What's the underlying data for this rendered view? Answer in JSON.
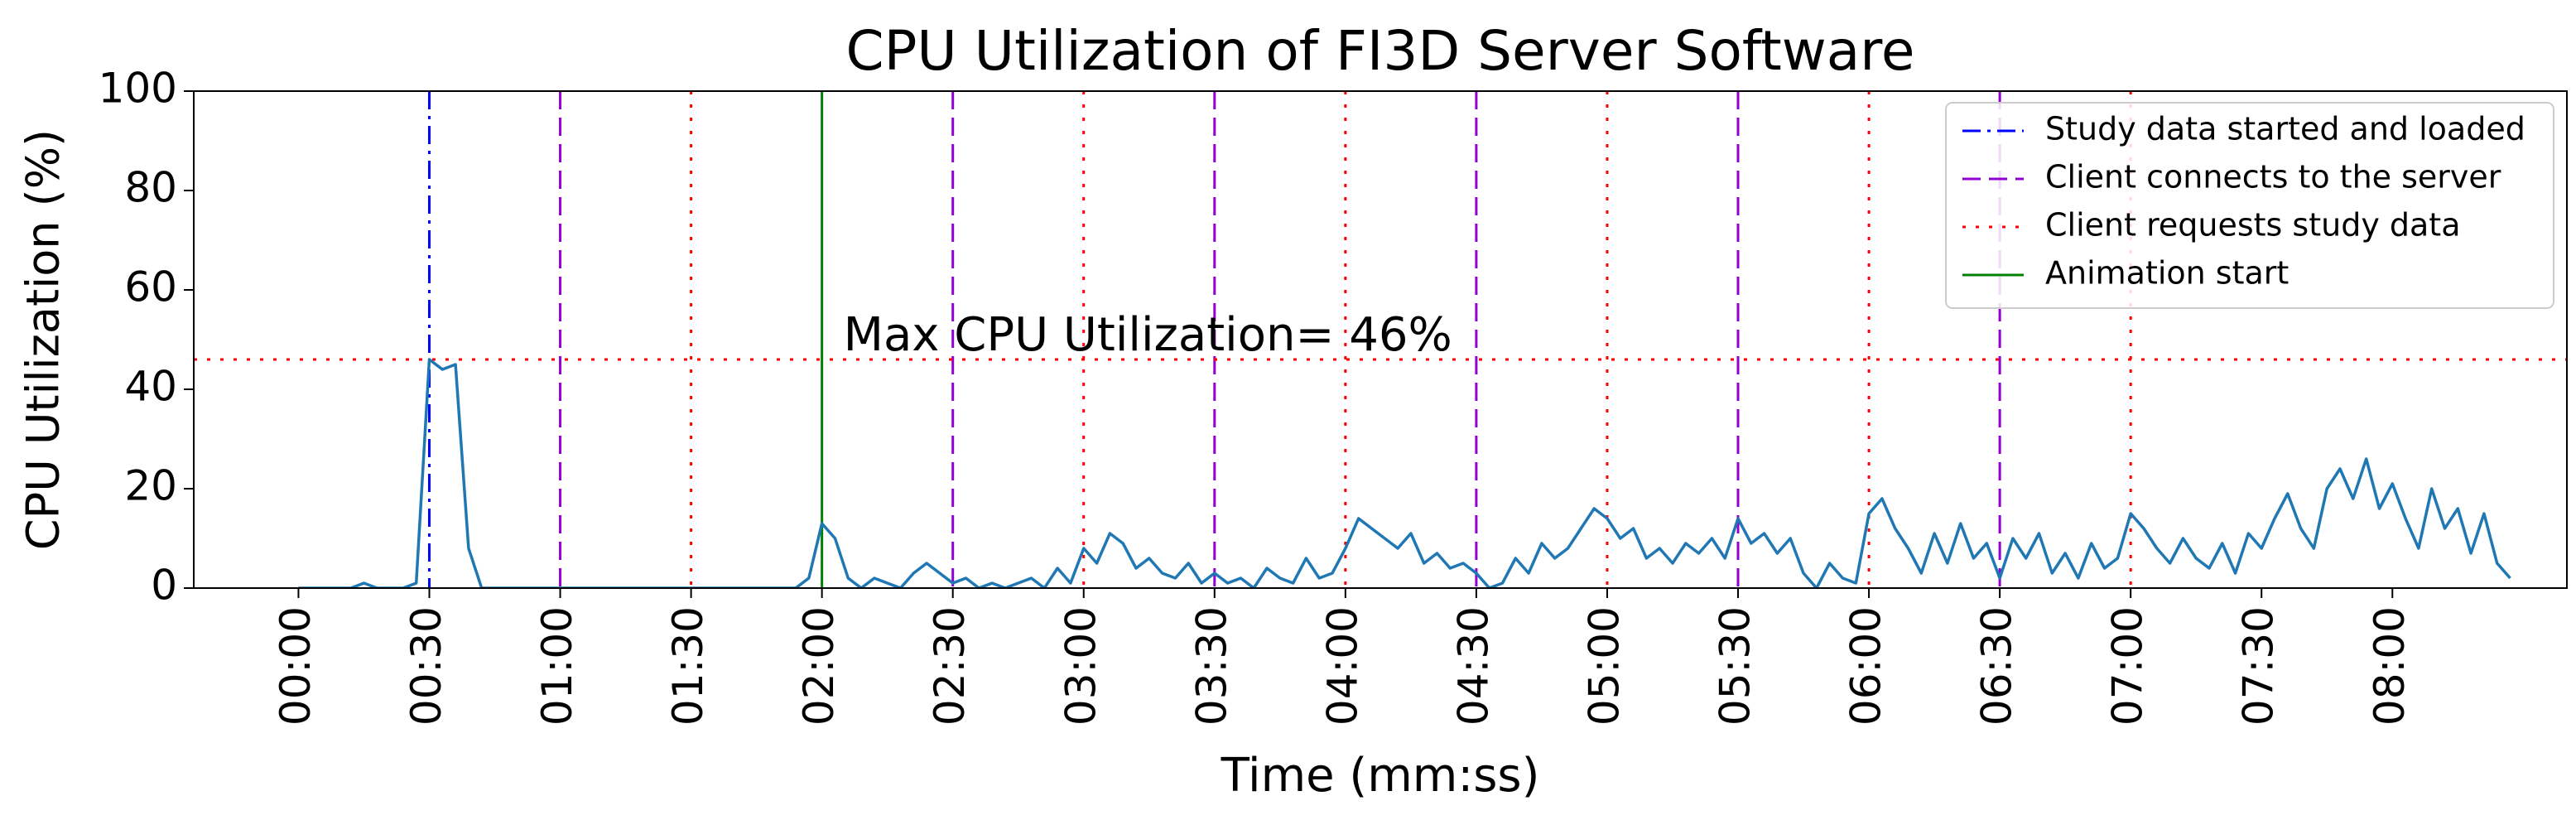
{
  "chart_data": {
    "type": "line",
    "title": "CPU Utilization of FI3D Server Software",
    "x_label": "Time (mm:ss)",
    "y_label": "CPU Utilization (%)",
    "xlim": [
      -24,
      520
    ],
    "ylim": [
      0,
      100
    ],
    "yticks": [
      0,
      20,
      40,
      60,
      80,
      100
    ],
    "xticks": [
      {
        "value": 0,
        "label": "00:00"
      },
      {
        "value": 30,
        "label": "00:30"
      },
      {
        "value": 60,
        "label": "01:00"
      },
      {
        "value": 90,
        "label": "01:30"
      },
      {
        "value": 120,
        "label": "02:00"
      },
      {
        "value": 150,
        "label": "02:30"
      },
      {
        "value": 180,
        "label": "03:00"
      },
      {
        "value": 210,
        "label": "03:30"
      },
      {
        "value": 240,
        "label": "04:00"
      },
      {
        "value": 270,
        "label": "04:30"
      },
      {
        "value": 300,
        "label": "05:00"
      },
      {
        "value": 330,
        "label": "05:30"
      },
      {
        "value": 360,
        "label": "06:00"
      },
      {
        "value": 390,
        "label": "06:30"
      },
      {
        "value": 420,
        "label": "07:00"
      },
      {
        "value": 450,
        "label": "07:30"
      },
      {
        "value": 480,
        "label": "08:00"
      }
    ],
    "legend": "upper right",
    "x": [
      0,
      3,
      6,
      9,
      12,
      15,
      18,
      21,
      24,
      27,
      30,
      33,
      36,
      39,
      42,
      45,
      48,
      51,
      54,
      57,
      60,
      63,
      66,
      69,
      72,
      75,
      78,
      81,
      84,
      87,
      90,
      93,
      96,
      99,
      102,
      105,
      108,
      111,
      114,
      117,
      120,
      123,
      126,
      129,
      132,
      135,
      138,
      141,
      144,
      147,
      150,
      153,
      156,
      159,
      162,
      165,
      168,
      171,
      174,
      177,
      180,
      183,
      186,
      189,
      192,
      195,
      198,
      201,
      204,
      207,
      210,
      213,
      216,
      219,
      222,
      225,
      228,
      231,
      234,
      237,
      240,
      243,
      246,
      249,
      252,
      255,
      258,
      261,
      264,
      267,
      270,
      273,
      276,
      279,
      282,
      285,
      288,
      291,
      294,
      297,
      300,
      303,
      306,
      309,
      312,
      315,
      318,
      321,
      324,
      327,
      330,
      333,
      336,
      339,
      342,
      345,
      348,
      351,
      354,
      357,
      360,
      363,
      366,
      369,
      372,
      375,
      378,
      381,
      384,
      387,
      390,
      393,
      396,
      399,
      402,
      405,
      408,
      411,
      414,
      417,
      420,
      423,
      426,
      429,
      432,
      435,
      438,
      441,
      444,
      447,
      450,
      453,
      456,
      459,
      462,
      465,
      468,
      471,
      474,
      477,
      480,
      483,
      486,
      489,
      492,
      495,
      498,
      501,
      504,
      507
    ],
    "series": [
      {
        "name": "CPU",
        "color": "#1f77b4",
        "values": [
          0,
          0,
          0,
          0,
          0,
          1,
          0,
          0,
          0,
          1,
          46,
          44,
          45,
          8,
          0,
          0,
          0,
          0,
          0,
          0,
          0,
          0,
          0,
          0,
          0,
          0,
          0,
          0,
          0,
          0,
          0,
          0,
          0,
          0,
          0,
          0,
          0,
          0,
          0,
          2,
          13,
          10,
          2,
          0,
          2,
          1,
          0,
          3,
          5,
          3,
          1,
          2,
          0,
          1,
          0,
          1,
          2,
          0,
          4,
          1,
          8,
          5,
          11,
          9,
          4,
          6,
          3,
          2,
          5,
          1,
          3,
          1,
          2,
          0,
          4,
          2,
          1,
          6,
          2,
          3,
          8,
          14,
          12,
          10,
          8,
          11,
          5,
          7,
          4,
          5,
          3,
          0,
          1,
          6,
          3,
          9,
          6,
          8,
          12,
          16,
          14,
          10,
          12,
          6,
          8,
          5,
          9,
          7,
          10,
          6,
          14,
          9,
          11,
          7,
          10,
          3,
          0,
          5,
          2,
          1,
          15,
          18,
          12,
          8,
          3,
          11,
          5,
          13,
          6,
          9,
          2,
          10,
          6,
          11,
          3,
          7,
          2,
          9,
          4,
          6,
          15,
          12,
          8,
          5,
          10,
          6,
          4,
          9,
          3,
          11,
          8,
          14,
          19,
          12,
          8,
          20,
          24,
          18,
          26,
          16,
          21,
          14,
          8,
          20,
          12,
          16,
          7,
          15,
          5,
          2
        ]
      }
    ],
    "event_lines": [
      {
        "name": "Study data started and loaded",
        "color": "#0000ff",
        "style": "dashdot",
        "x": [
          30
        ]
      },
      {
        "name": "Client connects to the server",
        "color": "#9400d3",
        "style": "dashed",
        "x": [
          60,
          150,
          210,
          270,
          330,
          390
        ]
      },
      {
        "name": "Client requests study data",
        "color": "#ff0000",
        "style": "dotted",
        "x": [
          90,
          180,
          240,
          300,
          360,
          420
        ]
      },
      {
        "name": "Animation start",
        "color": "#008000",
        "style": "solid",
        "x": [
          120
        ]
      }
    ],
    "max_line": {
      "y": 46,
      "label": "Max CPU Utilization= 46%",
      "color": "#ff0000",
      "style": "dotted"
    }
  }
}
